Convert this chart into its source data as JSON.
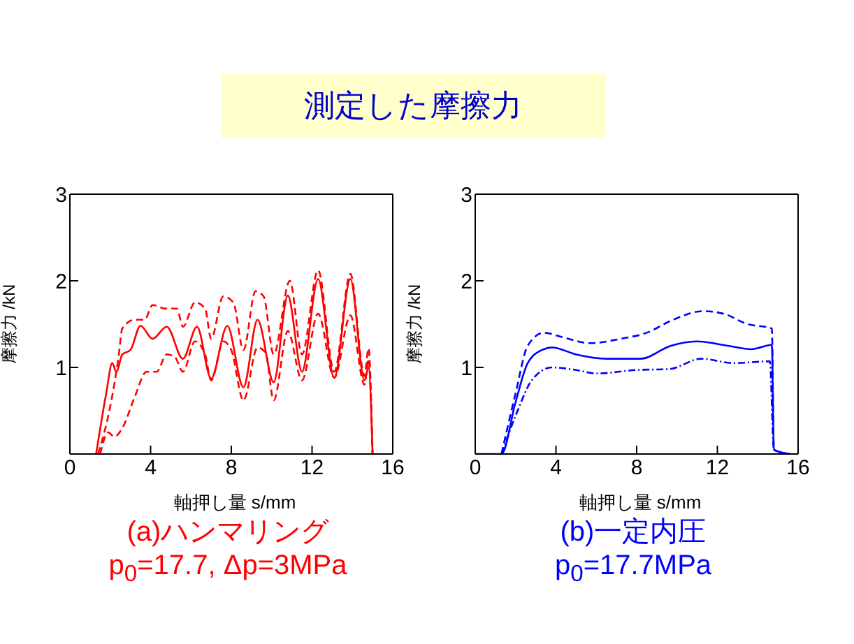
{
  "chart_data": [
    {
      "type": "line",
      "title": "測定した摩擦力",
      "xlabel": "軸押し量 s/mm",
      "ylabel": "摩擦力 /kN",
      "annotations": [
        "(a)ハンマリング",
        "p$_{0}$=17.7, Δp=3MPa"
      ],
      "xlim": [
        0,
        16
      ],
      "ylim": [
        0,
        3
      ],
      "xticks": [
        0,
        4,
        8,
        12,
        16
      ],
      "yticks": [
        {
          "value": 0,
          "label": null
        },
        1,
        2,
        3
      ],
      "marker": "none",
      "series": [
        {
          "color": "#ff0000",
          "line_style": "solid",
          "x": [
            1.3,
            1.8,
            2.1,
            2.3,
            2.6,
            3.0,
            3.5,
            4.1,
            4.8,
            5.6,
            6.3,
            7.0,
            7.8,
            8.6,
            9.3,
            10.1,
            10.8,
            11.5,
            12.3,
            13.1,
            13.9,
            14.6,
            14.8,
            15.0
          ],
          "values": [
            0,
            0.7,
            1.05,
            0.95,
            1.15,
            1.2,
            1.48,
            1.33,
            1.47,
            1.1,
            1.47,
            0.87,
            1.48,
            0.77,
            1.55,
            0.83,
            1.83,
            0.95,
            2.02,
            0.88,
            2.02,
            0.85,
            1.0,
            0
          ]
        },
        {
          "color": "#ff0000",
          "line_style": "dashed",
          "x": [
            1.4,
            2.0,
            2.4,
            2.6,
            3.2,
            3.7,
            4.1,
            4.7,
            5.3,
            5.6,
            6.2,
            6.7,
            7.0,
            7.6,
            8.1,
            8.6,
            9.2,
            9.6,
            10.1,
            10.9,
            11.5,
            12.3,
            13.1,
            13.9,
            14.6,
            14.8,
            15.0
          ],
          "values": [
            0,
            0.55,
            1.1,
            1.45,
            1.55,
            1.55,
            1.72,
            1.68,
            1.68,
            1.47,
            1.75,
            1.68,
            1.33,
            1.82,
            1.75,
            1.2,
            1.88,
            1.82,
            1.15,
            2.0,
            1.15,
            2.12,
            0.95,
            2.08,
            0.9,
            1.22,
            0
          ]
        },
        {
          "color": "#ff0000",
          "line_style": "dashed",
          "x": [
            1.5,
            1.9,
            2.2,
            2.6,
            3.2,
            3.8,
            4.3,
            4.8,
            5.2,
            5.6,
            6.2,
            6.7,
            7.0,
            7.6,
            8.0,
            8.6,
            9.3,
            9.7,
            10.1,
            10.8,
            11.5,
            12.3,
            13.1,
            13.9,
            14.6,
            14.8,
            15.0
          ],
          "values": [
            0,
            0.25,
            0.2,
            0.3,
            0.65,
            0.95,
            0.95,
            1.15,
            1.12,
            0.95,
            1.3,
            1.15,
            0.85,
            1.3,
            1.2,
            0.62,
            1.23,
            1.17,
            0.62,
            1.42,
            0.85,
            1.62,
            0.88,
            1.6,
            0.8,
            1.1,
            0
          ]
        }
      ]
    },
    {
      "type": "line",
      "xlabel": "軸押し量 s/mm",
      "ylabel": "摩擦力 /kN",
      "annotations": [
        "(b)一定内圧",
        "p$_{0}$=17.7MPa"
      ],
      "xlim": [
        0,
        16
      ],
      "ylim": [
        0,
        3
      ],
      "xticks": [
        0,
        4,
        8,
        12,
        16
      ],
      "yticks": [
        {
          "value": 0,
          "label": null
        },
        1,
        2,
        3
      ],
      "marker": "none",
      "series": [
        {
          "color": "#0000ff",
          "line_style": "solid",
          "x": [
            0,
            1.3,
            2.0,
            2.6,
            3.3,
            3.8,
            5,
            6.5,
            8.2,
            9.7,
            11.0,
            12.5,
            13.7,
            14.7,
            14.8,
            15.6
          ],
          "values": [
            0,
            0,
            0.6,
            1.05,
            1.2,
            1.23,
            1.15,
            1.1,
            1.1,
            1.25,
            1.3,
            1.25,
            1.21,
            1.26,
            0.05,
            0
          ]
        },
        {
          "color": "#0000ff",
          "line_style": "dashed",
          "x": [
            1.3,
            2.0,
            2.6,
            3.4,
            4.3,
            5.7,
            7.2,
            8.5,
            9.8,
            11.3,
            12.3,
            13.5,
            14.7,
            14.8,
            15.6
          ],
          "values": [
            0,
            0.7,
            1.25,
            1.4,
            1.35,
            1.28,
            1.33,
            1.4,
            1.55,
            1.65,
            1.62,
            1.5,
            1.45,
            0.05,
            0
          ]
        },
        {
          "color": "#0000ff",
          "line_style": "dotted",
          "x": [
            1.3,
            2.1,
            2.8,
            3.8,
            5,
            6,
            8,
            9.6,
            11.2,
            12.8,
            14.6,
            14.8,
            15.6
          ],
          "values": [
            0,
            0.5,
            0.85,
            1.0,
            0.97,
            0.93,
            0.97,
            0.98,
            1.1,
            1.05,
            1.07,
            0.05,
            0
          ]
        }
      ]
    }
  ]
}
